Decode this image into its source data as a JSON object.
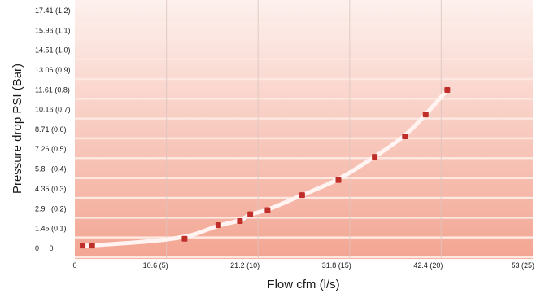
{
  "chart_data": {
    "type": "scatter",
    "xlabel": "Flow cfm (l/s)",
    "ylabel": "Pressure drop PSI (Bar)",
    "xlim": [
      0,
      53
    ],
    "ylim": [
      0,
      17.41
    ],
    "x_ticks": [
      {
        "value": 0,
        "label": "0"
      },
      {
        "value": 10.6,
        "label": "10.6 (5)"
      },
      {
        "value": 21.2,
        "label": "21.2 (10)"
      },
      {
        "value": 31.8,
        "label": "31.8 (15)"
      },
      {
        "value": 42.4,
        "label": "42.4 (20)"
      },
      {
        "value": 53,
        "label": "53 (25)"
      }
    ],
    "y_ticks": [
      {
        "value": 0,
        "label": "0     0"
      },
      {
        "value": 1.45,
        "label": "1.45 (0.1)"
      },
      {
        "value": 2.9,
        "label": "2.9   (0.2)"
      },
      {
        "value": 4.35,
        "label": "4.35 (0.3)"
      },
      {
        "value": 5.8,
        "label": "5.8   (0.4)"
      },
      {
        "value": 7.26,
        "label": "7.26 (0.5)"
      },
      {
        "value": 8.71,
        "label": "8.71 (0.6)"
      },
      {
        "value": 10.16,
        "label": "10.16 (0.7)"
      },
      {
        "value": 11.61,
        "label": "11.61 (0.8)"
      },
      {
        "value": 13.06,
        "label": "13.06 (0.9)"
      },
      {
        "value": 14.51,
        "label": "14.51 (1.0)"
      },
      {
        "value": 15.96,
        "label": "15.96 (1.1)"
      },
      {
        "value": 17.41,
        "label": "17.41 (1.2)"
      }
    ],
    "series": [
      {
        "points": [
          {
            "x": 0.9,
            "y": 0.2
          },
          {
            "x": 2.0,
            "y": 0.2
          },
          {
            "x": 12.7,
            "y": 0.7
          },
          {
            "x": 16.6,
            "y": 1.7
          },
          {
            "x": 19.1,
            "y": 2.0
          },
          {
            "x": 20.3,
            "y": 2.5
          },
          {
            "x": 22.3,
            "y": 2.8
          },
          {
            "x": 26.3,
            "y": 3.9
          },
          {
            "x": 30.5,
            "y": 5.0
          },
          {
            "x": 34.7,
            "y": 6.7
          },
          {
            "x": 38.2,
            "y": 8.2
          },
          {
            "x": 40.6,
            "y": 9.8
          },
          {
            "x": 43.1,
            "y": 11.6
          }
        ]
      }
    ],
    "grid": true,
    "colors": {
      "background_top": "#fdf1ee",
      "background_bottom": "#f3a592",
      "band_line": "#fde7e1",
      "vertical_grid": "#dcc6c1",
      "curve": "#fff4f1",
      "marker": "#c02e2a"
    }
  }
}
